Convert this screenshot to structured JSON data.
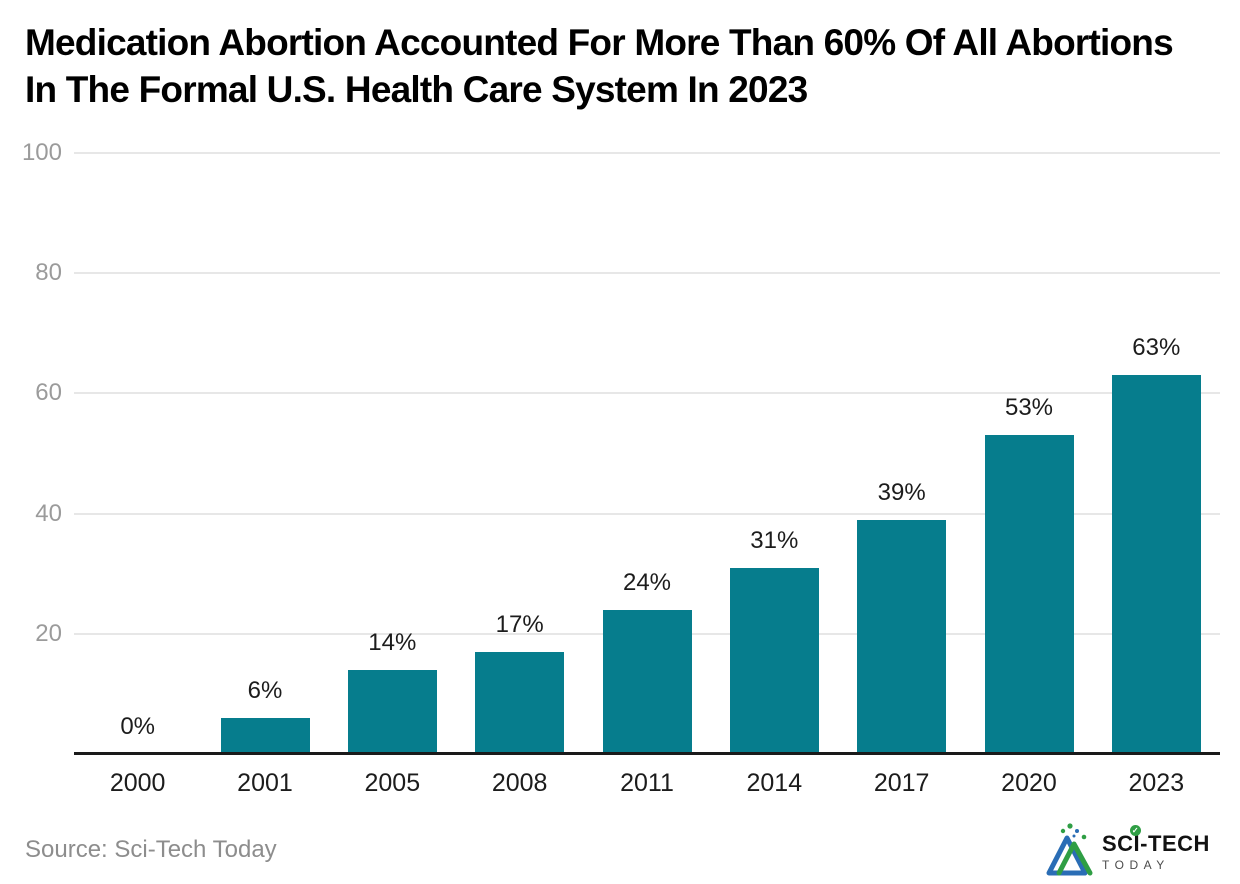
{
  "header": {
    "title": "Medication Abortion Accounted For More Than 60% Of All Abortions In The Formal U.S. Health Care System In 2023"
  },
  "chart_data": {
    "type": "bar",
    "title": "Medication Abortion Accounted For More Than 60% Of All Abortions In The Formal U.S. Health Care System In 2023",
    "categories": [
      "2000",
      "2001",
      "2005",
      "2008",
      "2011",
      "2014",
      "2017",
      "2020",
      "2023"
    ],
    "values": [
      0,
      6,
      14,
      17,
      24,
      31,
      39,
      53,
      63
    ],
    "value_labels": [
      "0%",
      "6%",
      "14%",
      "17%",
      "24%",
      "31%",
      "39%",
      "53%",
      "63%"
    ],
    "xlabel": "",
    "ylabel": "",
    "ylim": [
      0,
      100
    ],
    "yticks": [
      20,
      40,
      60,
      80,
      100
    ],
    "grid": "horizontal",
    "legend": "none",
    "bar_color": "#067d8d"
  },
  "footer": {
    "source": "Source: Sci-Tech Today",
    "logo": {
      "brand": "SCI-TECH",
      "brand_sub": "TODAY",
      "check_glyph": "✓"
    }
  },
  "colors": {
    "bar": "#067d8d",
    "gridline": "#e7e7e7",
    "axis": "#1a1a1a",
    "ytick_label": "#9b9b9b",
    "text": "#1c1c1c",
    "source_text": "#8d8d8d",
    "logo_blue": "#2a6db5",
    "logo_green": "#2f9e44",
    "background": "#ffffff"
  }
}
